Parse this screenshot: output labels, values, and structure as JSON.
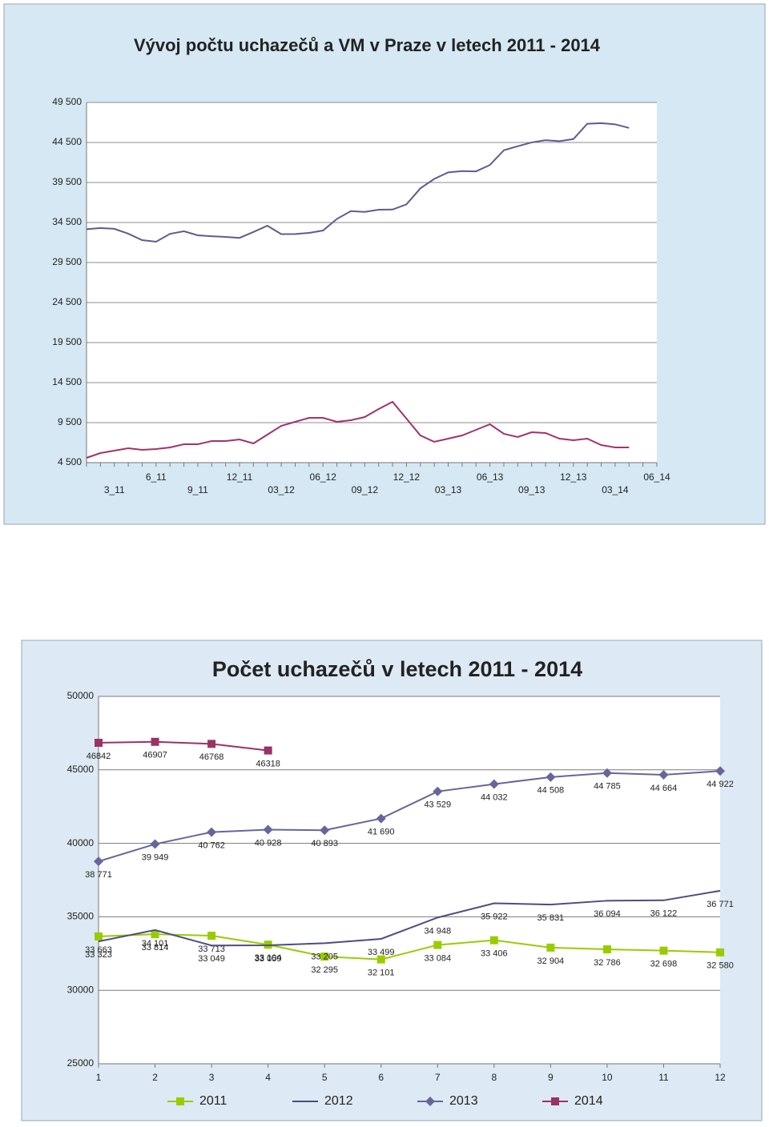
{
  "chart_data": [
    {
      "type": "line",
      "title": "Vývoj počtu uchazečů a VM v Praze v letech 2011 - 2014",
      "categories": [
        null,
        null,
        "3_11",
        null,
        null,
        "6_11",
        null,
        null,
        "9_11",
        null,
        null,
        "12_11",
        null,
        null,
        "03_12",
        null,
        null,
        "06_12",
        null,
        null,
        "09_12",
        null,
        null,
        "12_12",
        null,
        null,
        "03_13",
        null,
        null,
        "06_13",
        null,
        null,
        "09_13",
        null,
        null,
        "12_13",
        null,
        null,
        "03_14",
        null,
        null,
        "06_14"
      ],
      "series": [
        {
          "color": "#5e5c8c",
          "values": [
            33663,
            33814,
            33713,
            33104,
            32295,
            32101,
            33084,
            33406,
            32904,
            32786,
            32698,
            32580,
            33323,
            34101,
            33049,
            33059,
            33205,
            33499,
            34948,
            35922,
            35831,
            36094,
            36122,
            36771,
            38771,
            39949,
            40762,
            40928,
            40893,
            41690,
            43529,
            44032,
            44508,
            44785,
            44664,
            44922,
            46842,
            46907,
            46768,
            46318,
            null,
            null
          ]
        },
        {
          "color": "#a0326e",
          "values": [
            5100,
            5700,
            6000,
            6300,
            6100,
            6200,
            6400,
            6800,
            6800,
            7200,
            7200,
            7400,
            6900,
            8000,
            9100,
            9600,
            10100,
            10100,
            9600,
            9800,
            10200,
            11200,
            12100,
            10000,
            7900,
            7100,
            7500,
            7900,
            8600,
            9300,
            8100,
            7700,
            8300,
            8200,
            7500,
            7300,
            7500,
            6700,
            6400,
            6400,
            null,
            null
          ]
        }
      ],
      "ylim": [
        4500,
        49500
      ],
      "yticks": [
        {
          "value": 4500,
          "label": "4 500"
        },
        {
          "value": 9500,
          "label": "9 500"
        },
        {
          "value": 14500,
          "label": "14 500"
        },
        {
          "value": 19500,
          "label": "19 500"
        },
        {
          "value": 24500,
          "label": "24 500"
        },
        {
          "value": 29500,
          "label": "29 500"
        },
        {
          "value": 34500,
          "label": "34 500"
        },
        {
          "value": 39500,
          "label": "39 500"
        },
        {
          "value": 44500,
          "label": "44 500"
        },
        {
          "value": 49500,
          "label": "49 500"
        }
      ],
      "grid": true
    },
    {
      "type": "line",
      "title": "Počet uchazečů v letech 2011 - 2014",
      "x": [
        1,
        2,
        3,
        4,
        5,
        6,
        7,
        8,
        9,
        10,
        11,
        12
      ],
      "xlim": [
        1,
        12
      ],
      "xticks": [
        1,
        2,
        3,
        4,
        5,
        6,
        7,
        8,
        9,
        10,
        11,
        12
      ],
      "series": [
        {
          "name": "2011",
          "color": "#99cc00",
          "marker": "square",
          "values": [
            33663,
            33814,
            33713,
            33104,
            32295,
            32101,
            33084,
            33406,
            32904,
            32786,
            32698,
            32580
          ],
          "value_labels": [
            "33 663",
            "33 814",
            "33 713",
            "33 104",
            "32 295",
            "32 101",
            "33 084",
            "33 406",
            "32 904",
            "32 786",
            "32 698",
            "32 580"
          ]
        },
        {
          "name": "2012",
          "color": "#4d4d80",
          "marker": "none",
          "values": [
            33323,
            34101,
            33049,
            33059,
            33205,
            33499,
            34948,
            35922,
            35831,
            36094,
            36122,
            36771
          ],
          "value_labels": [
            "33 323",
            "34 101",
            "33 049",
            "33 059",
            "33 205",
            "33 499",
            "34 948",
            "35 922",
            "35 831",
            "36 094",
            "36 122",
            "36 771"
          ]
        },
        {
          "name": "2013",
          "color": "#66669a",
          "marker": "diamond",
          "values": [
            38771,
            39949,
            40762,
            40928,
            40893,
            41690,
            43529,
            44032,
            44508,
            44785,
            44664,
            44922
          ],
          "value_labels": [
            "38 771",
            "39 949",
            "40 762",
            "40 928",
            "40 893",
            "41 690",
            "43 529",
            "44 032",
            "44 508",
            "44 785",
            "44 664",
            "44 922"
          ]
        },
        {
          "name": "2014",
          "color": "#993366",
          "marker": "square",
          "values": [
            46842,
            46907,
            46768,
            46318,
            null,
            null,
            null,
            null,
            null,
            null,
            null,
            null
          ]
        }
      ],
      "ylim": [
        25000,
        50000
      ],
      "yticks": [
        25000,
        30000,
        35000,
        40000,
        45000,
        50000
      ],
      "grid": true,
      "legend": "bottom"
    }
  ]
}
